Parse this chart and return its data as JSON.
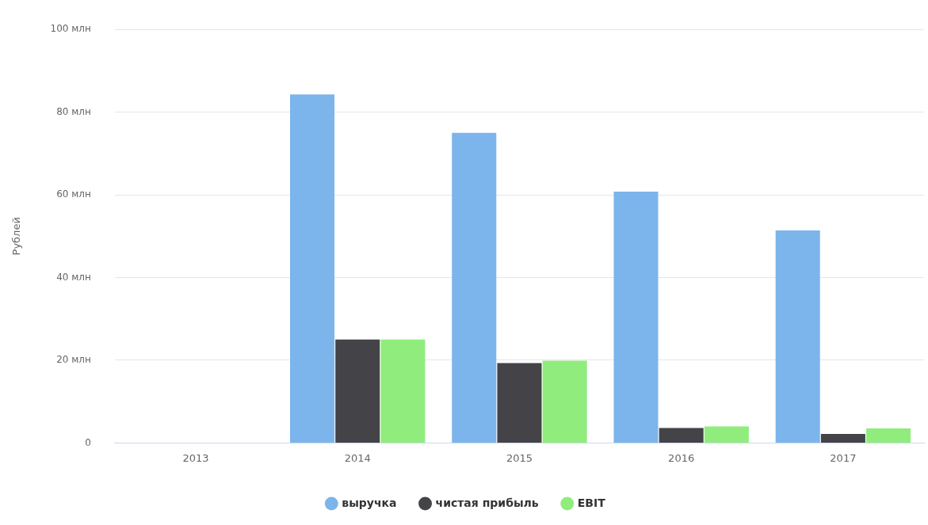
{
  "chart_data": {
    "type": "bar",
    "ylabel": "Рублей",
    "categories": [
      "2013",
      "2014",
      "2015",
      "2016",
      "2017"
    ],
    "series": [
      {
        "name": "выручка",
        "color": "#7cb5ec",
        "values": [
          null,
          84.3,
          75.0,
          60.8,
          51.4
        ]
      },
      {
        "name": "чистая прибыль",
        "color": "#434348",
        "values": [
          null,
          25.0,
          19.3,
          3.6,
          2.2
        ]
      },
      {
        "name": "EBIT",
        "color": "#90ed7d",
        "values": [
          null,
          25.0,
          19.9,
          4.0,
          3.5
        ]
      }
    ],
    "ylim": [
      0,
      100
    ],
    "yticks": [
      {
        "value": 0,
        "label": "0"
      },
      {
        "value": 20,
        "label": "20 млн"
      },
      {
        "value": 40,
        "label": "40 млн"
      },
      {
        "value": 60,
        "label": "60 млн"
      },
      {
        "value": 80,
        "label": "80 млн"
      },
      {
        "value": 100,
        "label": "100 млн"
      }
    ],
    "grid": "y",
    "legend": "bottom"
  }
}
